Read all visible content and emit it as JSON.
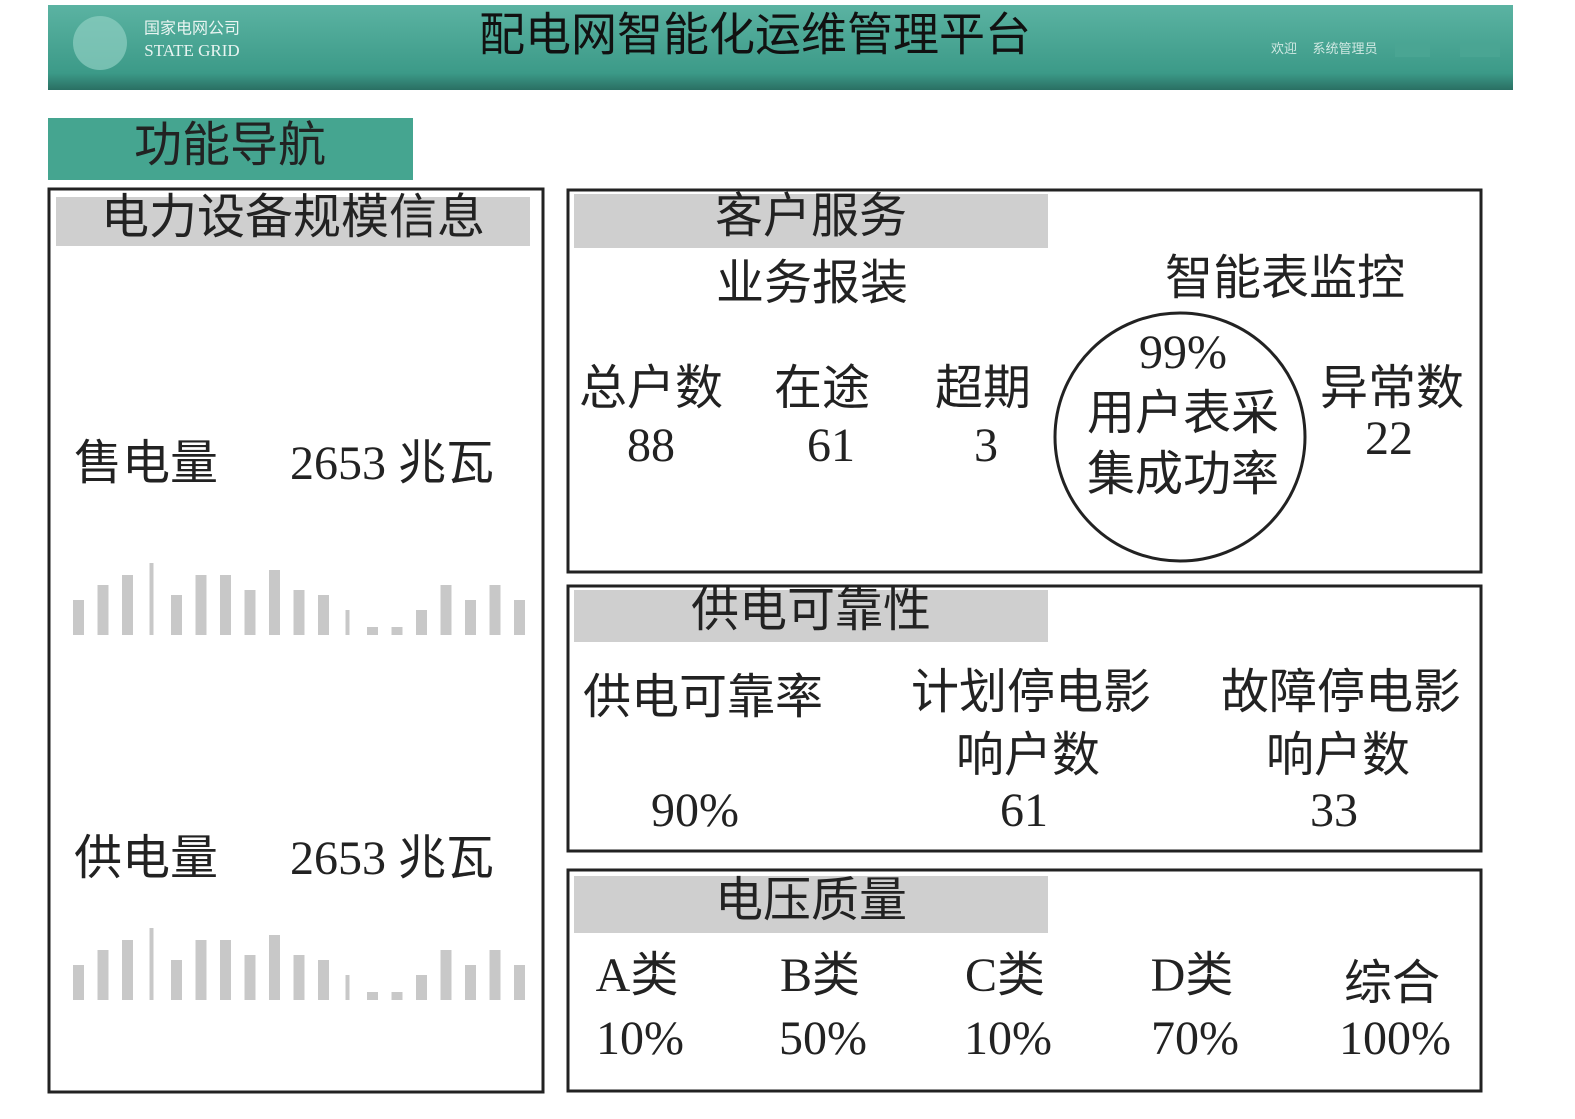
{
  "header": {
    "logo_cn": "国家电网公司",
    "logo_en": "STATE GRID",
    "title": "配电网智能化运维管理平台",
    "welcome": "欢迎",
    "user": "系统管理员"
  },
  "nav": {
    "title": "功能导航"
  },
  "equipment": {
    "title": "电力设备规模信息",
    "items": [
      {
        "label": "售电量",
        "value": "2653 兆瓦"
      },
      {
        "label": "供电量",
        "value": "2653 兆瓦"
      }
    ]
  },
  "customer_service": {
    "title": "客户服务",
    "business": {
      "title": "业务报装",
      "metrics": [
        {
          "label": "总户数",
          "value": "88"
        },
        {
          "label": "在途",
          "value": "61"
        },
        {
          "label": "超期",
          "value": "3"
        }
      ]
    },
    "smart_meter": {
      "title": "智能表监控",
      "rate": "99%",
      "rate_label": [
        "用户表采",
        "集成功率"
      ],
      "abnormal": {
        "label": "异常数",
        "value": "22"
      }
    }
  },
  "reliability": {
    "title": "供电可靠性",
    "metrics": [
      {
        "label": [
          "供电可靠率"
        ],
        "value": "90%"
      },
      {
        "label": [
          "计划停电影",
          "响户数"
        ],
        "value": "61"
      },
      {
        "label": [
          "故障停电影",
          "响户数"
        ],
        "value": "33"
      }
    ]
  },
  "voltage": {
    "title": "电压质量",
    "metrics": [
      {
        "label": "A类",
        "value": "10%"
      },
      {
        "label": "B类",
        "value": "50%"
      },
      {
        "label": "C类",
        "value": "10%"
      },
      {
        "label": "D类",
        "value": "70%"
      },
      {
        "label": "综合",
        "value": "100%"
      }
    ]
  }
}
